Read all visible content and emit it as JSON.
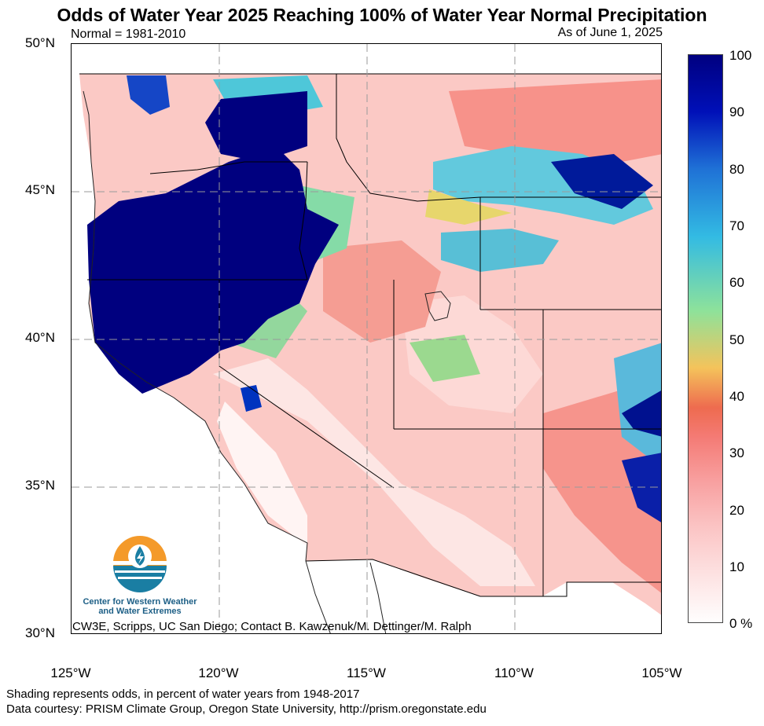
{
  "title": "Odds of Water Year 2025 Reaching 100% of Water Year Normal Precipitation",
  "normal_period": "Normal = 1981-2010",
  "as_of": "As of June 1, 2025",
  "lat_ticks": [
    {
      "value": 50,
      "label": "50°N"
    },
    {
      "value": 45,
      "label": "45°N"
    },
    {
      "value": 40,
      "label": "40°N"
    },
    {
      "value": 35,
      "label": "35°N"
    },
    {
      "value": 30,
      "label": "30°N"
    }
  ],
  "lon_ticks": [
    {
      "value": -125,
      "label": "125°W"
    },
    {
      "value": -120,
      "label": "120°W"
    },
    {
      "value": -115,
      "label": "115°W"
    },
    {
      "value": -110,
      "label": "110°W"
    },
    {
      "value": -105,
      "label": "105°W"
    }
  ],
  "colorbar": {
    "labels": [
      "100",
      "90",
      "80",
      "70",
      "60",
      "50",
      "40",
      "30",
      "20",
      "10",
      "0 %"
    ],
    "colors": [
      "#ffffff",
      "#fde4e4",
      "#fbc4c4",
      "#f8a0a0",
      "#f47a74",
      "#ee6b4f",
      "#f4c35b",
      "#8ee29a",
      "#33bbe3",
      "#1f71d6",
      "#0010b8",
      "#000080"
    ]
  },
  "logo": {
    "org_line1": "Center for Western Weather",
    "org_line2": "and Water Extremes",
    "colors": {
      "orange": "#f49a2a",
      "teal": "#1a7ea3",
      "navy": "#1d5f86"
    }
  },
  "credits": "CW3E, Scripps, UC San Diego; Contact B. Kawzenuk/M. Dettinger/M. Ralph",
  "footnote_odds": "Shading represents odds, in percent of water years from 1948-2017",
  "footnote_data": "Data courtesy: PRISM Climate Group, Oregon State University, http://prism.oregonstate.edu"
}
